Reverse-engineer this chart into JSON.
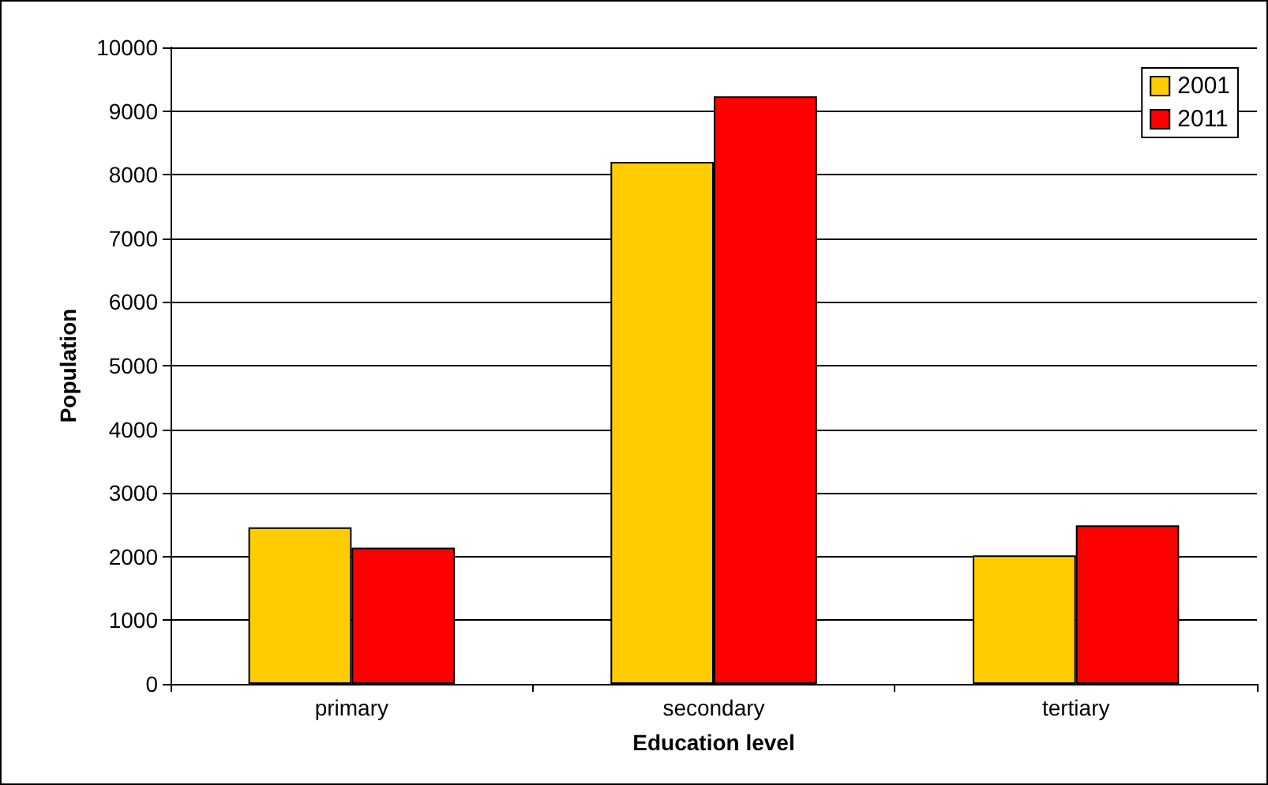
{
  "chart_data": {
    "type": "bar",
    "xlabel": "Education level",
    "ylabel": "Population",
    "categories": [
      "primary",
      "secondary",
      "tertiary"
    ],
    "series": [
      {
        "name": "2001",
        "color": "#ffcc00",
        "values": [
          2460,
          8200,
          2020
        ]
      },
      {
        "name": "2011",
        "color": "#ff0000",
        "values": [
          2140,
          9230,
          2490
        ]
      }
    ],
    "ylim": [
      0,
      10000
    ],
    "yticks": [
      0,
      1000,
      2000,
      3000,
      4000,
      5000,
      6000,
      7000,
      8000,
      9000,
      10000
    ],
    "grid": "y",
    "legend": "top right"
  }
}
